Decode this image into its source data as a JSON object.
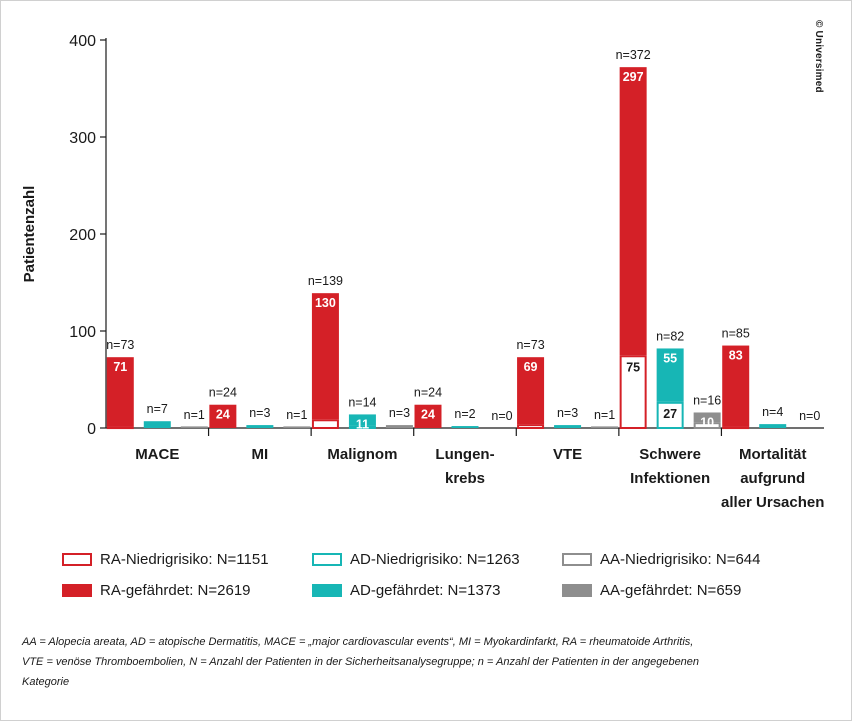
{
  "chart_data": {
    "type": "bar",
    "ylabel": "Patientenzahl",
    "xlabel": "",
    "ylim": [
      0,
      400
    ],
    "yticks": [
      0,
      100,
      200,
      300,
      400
    ],
    "grid": false,
    "categories": [
      [
        "MACE"
      ],
      [
        "MI"
      ],
      [
        "Malignom"
      ],
      [
        "Lungen-",
        "krebs"
      ],
      [
        "VTE"
      ],
      [
        "Schwere",
        "Infektionen"
      ],
      [
        "Mortalität",
        "aufgrund",
        "aller Ursachen"
      ]
    ],
    "groups": [
      {
        "bars": [
          {
            "series": "RA",
            "total": 73,
            "total_label": "n=73",
            "low_risk": 2,
            "at_risk": 71,
            "low_label": "",
            "at_label": "71"
          },
          {
            "series": "AD",
            "total": 7,
            "total_label": "n=7",
            "low_risk": 0,
            "at_risk": 7,
            "low_label": "",
            "at_label": ""
          },
          {
            "series": "AA",
            "total": 1,
            "total_label": "n=1",
            "low_risk": 0,
            "at_risk": 1,
            "low_label": "",
            "at_label": ""
          }
        ]
      },
      {
        "bars": [
          {
            "series": "RA",
            "total": 24,
            "total_label": "n=24",
            "low_risk": 0,
            "at_risk": 24,
            "low_label": "",
            "at_label": "24"
          },
          {
            "series": "AD",
            "total": 3,
            "total_label": "n=3",
            "low_risk": 0,
            "at_risk": 3,
            "low_label": "",
            "at_label": ""
          },
          {
            "series": "AA",
            "total": 1,
            "total_label": "n=1",
            "low_risk": 0,
            "at_risk": 1,
            "low_label": "",
            "at_label": ""
          }
        ]
      },
      {
        "bars": [
          {
            "series": "RA",
            "total": 139,
            "total_label": "n=139",
            "low_risk": 9,
            "at_risk": 130,
            "low_label": "",
            "at_label": "130"
          },
          {
            "series": "AD",
            "total": 14,
            "total_label": "n=14",
            "low_risk": 3,
            "at_risk": 11,
            "low_label": "",
            "at_label": "11"
          },
          {
            "series": "AA",
            "total": 3,
            "total_label": "n=3",
            "low_risk": 0,
            "at_risk": 3,
            "low_label": "",
            "at_label": ""
          }
        ]
      },
      {
        "bars": [
          {
            "series": "RA",
            "total": 24,
            "total_label": "n=24",
            "low_risk": 0,
            "at_risk": 24,
            "low_label": "",
            "at_label": "24"
          },
          {
            "series": "AD",
            "total": 2,
            "total_label": "n=2",
            "low_risk": 0,
            "at_risk": 2,
            "low_label": "",
            "at_label": ""
          },
          {
            "series": "AA",
            "total": 0,
            "total_label": "n=0",
            "low_risk": 0,
            "at_risk": 0,
            "low_label": "",
            "at_label": ""
          }
        ]
      },
      {
        "bars": [
          {
            "series": "RA",
            "total": 73,
            "total_label": "n=73",
            "low_risk": 4,
            "at_risk": 69,
            "low_label": "",
            "at_label": "69"
          },
          {
            "series": "AD",
            "total": 3,
            "total_label": "n=3",
            "low_risk": 0,
            "at_risk": 3,
            "low_label": "",
            "at_label": ""
          },
          {
            "series": "AA",
            "total": 1,
            "total_label": "n=1",
            "low_risk": 0,
            "at_risk": 1,
            "low_label": "",
            "at_label": ""
          }
        ]
      },
      {
        "bars": [
          {
            "series": "RA",
            "total": 372,
            "total_label": "n=372",
            "low_risk": 75,
            "at_risk": 297,
            "low_label": "75",
            "at_label": "297"
          },
          {
            "series": "AD",
            "total": 82,
            "total_label": "n=82",
            "low_risk": 27,
            "at_risk": 55,
            "low_label": "27",
            "at_label": "55"
          },
          {
            "series": "AA",
            "total": 16,
            "total_label": "n=16",
            "low_risk": 6,
            "at_risk": 10,
            "low_label": "",
            "at_label": "10"
          }
        ]
      },
      {
        "bars": [
          {
            "series": "RA",
            "total": 85,
            "total_label": "n=85",
            "low_risk": 2,
            "at_risk": 83,
            "low_label": "",
            "at_label": "83"
          },
          {
            "series": "AD",
            "total": 4,
            "total_label": "n=4",
            "low_risk": 0,
            "at_risk": 4,
            "low_label": "",
            "at_label": ""
          },
          {
            "series": "AA",
            "total": 0,
            "total_label": "n=0",
            "low_risk": 0,
            "at_risk": 0,
            "low_label": "",
            "at_label": ""
          }
        ]
      }
    ],
    "series_colors": {
      "RA": "#d42027",
      "AD": "#17b6b5",
      "AA": "#8e8e8e"
    },
    "legend_position": "bottom"
  },
  "legend": {
    "items": [
      {
        "label": "RA-Niedrigrisiko: N=1151",
        "color": "#d42027",
        "filled": false
      },
      {
        "label": "AD-Niedrigrisiko: N=1263",
        "color": "#17b6b5",
        "filled": false
      },
      {
        "label": "AA-Niedrigrisiko: N=644",
        "color": "#8e8e8e",
        "filled": false
      },
      {
        "label": "RA-gefährdet: N=2619",
        "color": "#d42027",
        "filled": true
      },
      {
        "label": "AD-gefährdet: N=1373",
        "color": "#17b6b5",
        "filled": true
      },
      {
        "label": "AA-gefährdet: N=659",
        "color": "#8e8e8e",
        "filled": true
      }
    ]
  },
  "copyright": "© Universimed",
  "footnote": {
    "line1": "AA = Alopecia areata, AD = atopische Dermatitis, MACE = „major cardiovascular events“, MI = Myokardinfarkt, RA = rheumatoide Arthritis,",
    "line2": "VTE = venöse Thromboembolien, N = Anzahl der Patienten in der Sicherheitsanalysegruppe; n = Anzahl der Patienten in der angegebenen",
    "line3": "Kategorie"
  }
}
